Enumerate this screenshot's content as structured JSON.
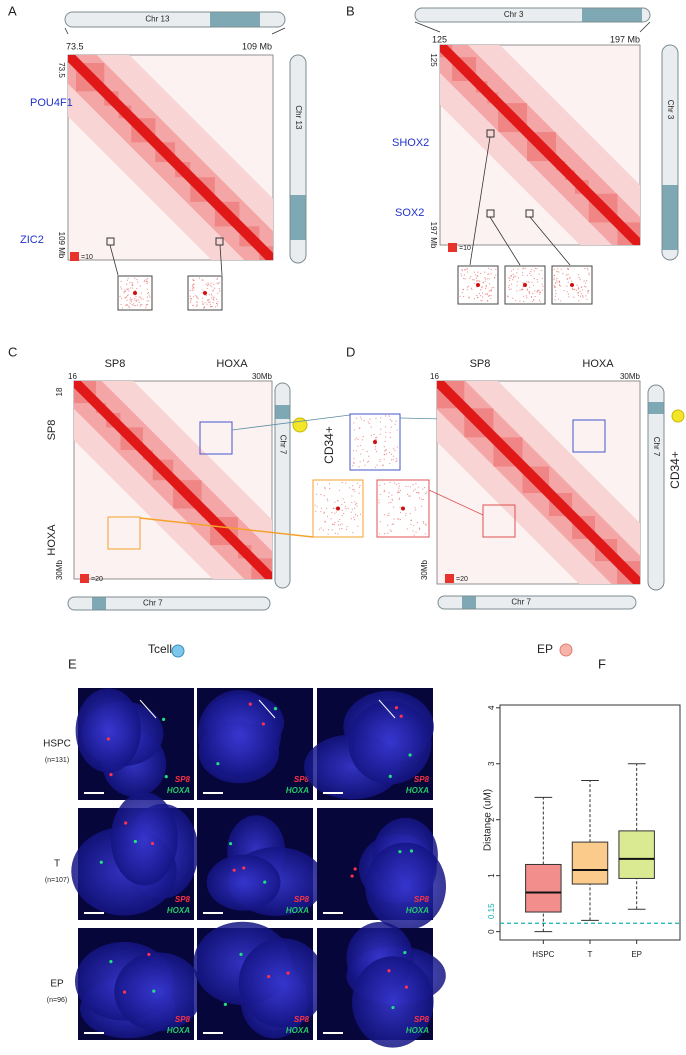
{
  "panels": {
    "a": {
      "label": "A",
      "chromosome": "Chr 13",
      "x_start": "73.5",
      "x_end": "109 Mb",
      "y_start": "73.5",
      "y_end": "109 Mb",
      "genes": [
        "POU4F1",
        "ZIC2"
      ],
      "scale": "=10",
      "side_chromosome": "Chr 13"
    },
    "b": {
      "label": "B",
      "chromosome": "Chr 3",
      "x_start": "125",
      "x_end": "197 Mb",
      "y_start": "125",
      "y_end": "197 Mb",
      "genes": [
        "SHOX2",
        "SOX2"
      ],
      "scale": "=10",
      "side_chromosome": "Chr 3"
    },
    "c": {
      "label": "C",
      "genes_top": [
        "SP8",
        "HOXA"
      ],
      "x_start": "16",
      "x_end": "30Mb",
      "y_start": "18",
      "y_end": "30Mb",
      "genes_left": [
        "SP8",
        "HOXA"
      ],
      "scale": "=20",
      "side_chromosome": "Chr 7",
      "bottom_chromosome": "Chr 7",
      "cell_type": "CD34+",
      "sample": "Tcell"
    },
    "d": {
      "label": "D",
      "genes_top": [
        "SP8",
        "HOXA"
      ],
      "x_start": "16",
      "x_end": "30Mb",
      "y_end": "30Mb",
      "scale": "=20",
      "side_chromosome": "Chr 7",
      "bottom_chromosome": "Chr 7",
      "cell_type": "CD34+",
      "sample": "EP"
    },
    "e": {
      "label": "E",
      "rows": [
        {
          "name": "HSPC",
          "n": "(n=131)"
        },
        {
          "name": "T",
          "n": "(n=107)"
        },
        {
          "name": "EP",
          "n": "(n=96)"
        }
      ],
      "probe_labels": [
        "SP8",
        "HOXA"
      ]
    }
  },
  "chart_data": {
    "type": "box",
    "panel_label": "F",
    "y_label": "Distance (uM)",
    "categories": [
      "HSPC",
      "T",
      "EP"
    ],
    "colors": [
      "#e8322c",
      "#f5a12b",
      "#b9d83b"
    ],
    "whisker_low": [
      0,
      0.2,
      0.4
    ],
    "q1": [
      0.35,
      0.85,
      0.95
    ],
    "median": [
      0.7,
      1.1,
      1.3
    ],
    "q3": [
      1.2,
      1.6,
      1.8
    ],
    "whisker_high": [
      2.4,
      2.7,
      3.0
    ],
    "ylim": [
      -0.15,
      4.05
    ],
    "yticks": [
      0,
      1,
      2,
      3,
      4
    ],
    "threshold": {
      "value": 0.15,
      "label": "0.15"
    }
  }
}
